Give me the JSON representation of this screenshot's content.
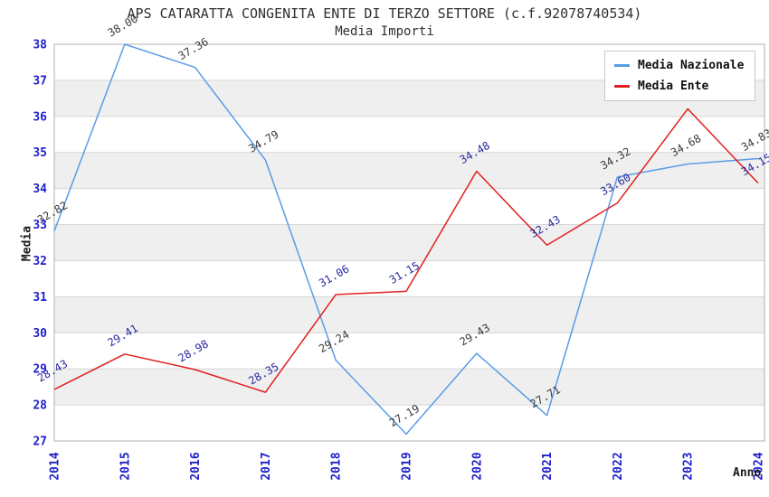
{
  "title": "APS CATARATTA CONGENITA ENTE DI TERZO SETTORE (c.f.92078740534)",
  "subtitle": "Media Importi",
  "legend": {
    "items": [
      {
        "label": "Media Nazionale",
        "color": "#5a9ce8"
      },
      {
        "label": "Media Ente",
        "color": "#e02020"
      }
    ]
  },
  "chart_data": {
    "type": "line",
    "title": "APS CATARATTA CONGENITA ENTE DI TERZO SETTORE (c.f.92078740534)",
    "subtitle": "Media Importi",
    "xlabel": "Anno",
    "ylabel": "Media",
    "categories": [
      "2014",
      "2015",
      "2016",
      "2017",
      "2018",
      "2019",
      "2020",
      "2021",
      "2022",
      "2023",
      "2024"
    ],
    "series": [
      {
        "name": "Media Nazionale",
        "color": "#5a9ce8",
        "label_color": "#3a3a3a",
        "values": [
          32.82,
          38.0,
          37.36,
          34.79,
          29.24,
          27.19,
          29.43,
          27.71,
          34.32,
          34.68,
          34.83
        ]
      },
      {
        "name": "Media Ente",
        "color": "#e02020",
        "label_color": "#2828a0",
        "values": [
          28.43,
          29.41,
          28.98,
          28.35,
          31.06,
          31.15,
          34.48,
          32.43,
          33.6,
          36.21,
          34.15
        ]
      }
    ],
    "ylim": [
      27,
      38
    ],
    "yticks": [
      27,
      28,
      29,
      30,
      31,
      32,
      33,
      34,
      35,
      36,
      37,
      38
    ],
    "grid": "horizontal, alternating shaded bands",
    "legend_position": "top-right",
    "band_colors": [
      "#ffffff",
      "#efefef"
    ],
    "gridline_color": "#d6d6d6",
    "border_color": "#b2b2b2",
    "tick_label_color": "#1f1fcc",
    "data_labels_shown": true
  }
}
